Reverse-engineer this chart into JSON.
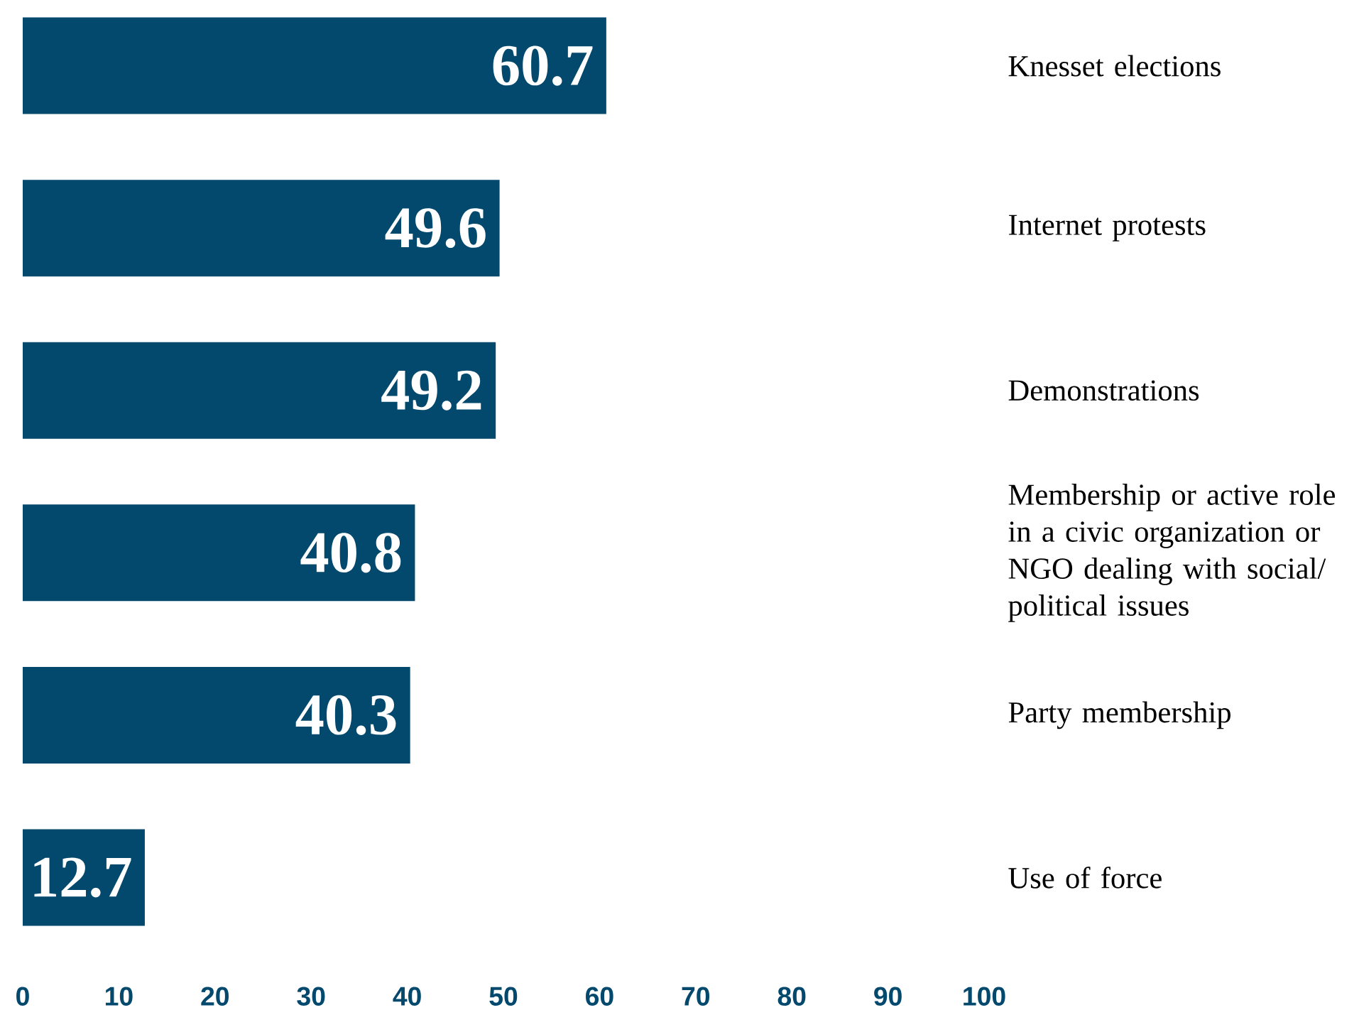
{
  "chart_data": {
    "type": "bar",
    "orientation": "horizontal",
    "categories": [
      "Knesset elections",
      "Internet protests",
      "Demonstrations",
      "Membership or active role in a civic organization or NGO dealing with social/ political issues",
      "Party membership",
      "Use of force"
    ],
    "values": [
      60.7,
      49.6,
      49.2,
      40.8,
      40.3,
      12.7
    ],
    "color": "#03496d",
    "xlim": [
      0,
      100
    ],
    "xticks": [
      0,
      10,
      20,
      30,
      40,
      50,
      60,
      70,
      80,
      90,
      100
    ],
    "data_labels": true,
    "grid": false
  }
}
